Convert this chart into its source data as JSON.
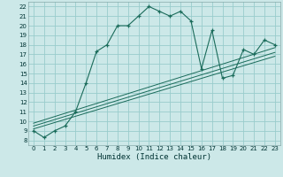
{
  "bg_color": "#cce8e8",
  "grid_color": "#99cccc",
  "line_color": "#1a6b5a",
  "xlabel": "Humidex (Indice chaleur)",
  "yticks": [
    8,
    9,
    10,
    11,
    12,
    13,
    14,
    15,
    16,
    17,
    18,
    19,
    20,
    21,
    22
  ],
  "xticks": [
    0,
    1,
    2,
    3,
    4,
    5,
    6,
    7,
    8,
    9,
    10,
    11,
    12,
    13,
    14,
    15,
    16,
    17,
    18,
    19,
    20,
    21,
    22,
    23
  ],
  "xlim": [
    -0.5,
    23.5
  ],
  "ylim": [
    7.5,
    22.5
  ],
  "main_curve_x": [
    0,
    1,
    2,
    3,
    4,
    5,
    6,
    7,
    8,
    9,
    10,
    11,
    12,
    13,
    14,
    15,
    16,
    17,
    18,
    19,
    20,
    21,
    22,
    23
  ],
  "main_curve_y": [
    9.0,
    8.3,
    9.0,
    9.5,
    11.0,
    14.0,
    17.3,
    18.0,
    20.0,
    20.0,
    21.0,
    22.0,
    21.5,
    21.0,
    21.5,
    20.5,
    15.5,
    19.5,
    14.5,
    14.8,
    17.5,
    17.0,
    18.5,
    18.0
  ],
  "line1_x": [
    0,
    23
  ],
  "line1_y": [
    9.5,
    17.2
  ],
  "line2_x": [
    0,
    23
  ],
  "line2_y": [
    9.8,
    17.7
  ],
  "line3_x": [
    0,
    23
  ],
  "line3_y": [
    9.2,
    16.8
  ]
}
